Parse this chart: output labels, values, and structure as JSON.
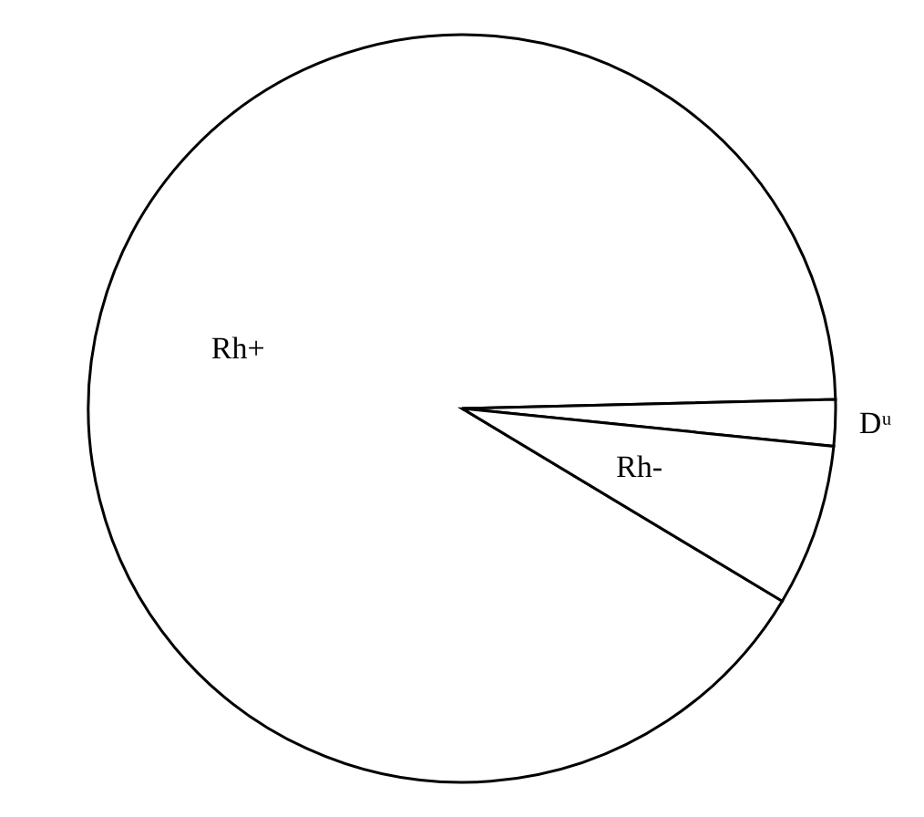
{
  "chart_data": {
    "type": "pie",
    "categories": [
      "Rh+",
      "Dᵘ",
      "Rh-"
    ],
    "values": [
      91,
      2,
      7
    ],
    "colors": [
      "#ffffff",
      "#ffffff",
      "#ffffff"
    ]
  }
}
